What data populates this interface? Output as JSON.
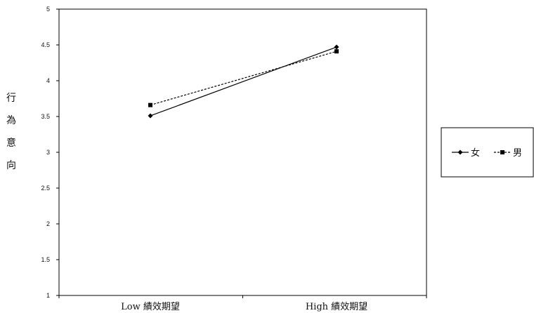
{
  "chart_data": {
    "type": "line",
    "title": "",
    "xlabel": "",
    "ylabel_chars": [
      "行",
      "為",
      "意",
      "向"
    ],
    "categories": [
      "Low 績效期望",
      "High 績效期望"
    ],
    "yticks": [
      "1",
      "1.5",
      "2",
      "2.5",
      "3",
      "3.5",
      "4",
      "4.5",
      "5"
    ],
    "ylim": [
      1,
      5
    ],
    "grid": false,
    "legend_position": "right",
    "series": [
      {
        "name": "女",
        "values": [
          3.51,
          4.47
        ],
        "marker": "diamond",
        "dash": "solid",
        "color": "#000000"
      },
      {
        "name": "男",
        "values": [
          3.66,
          4.41
        ],
        "marker": "square",
        "dash": "dashed",
        "color": "#000000"
      }
    ]
  }
}
